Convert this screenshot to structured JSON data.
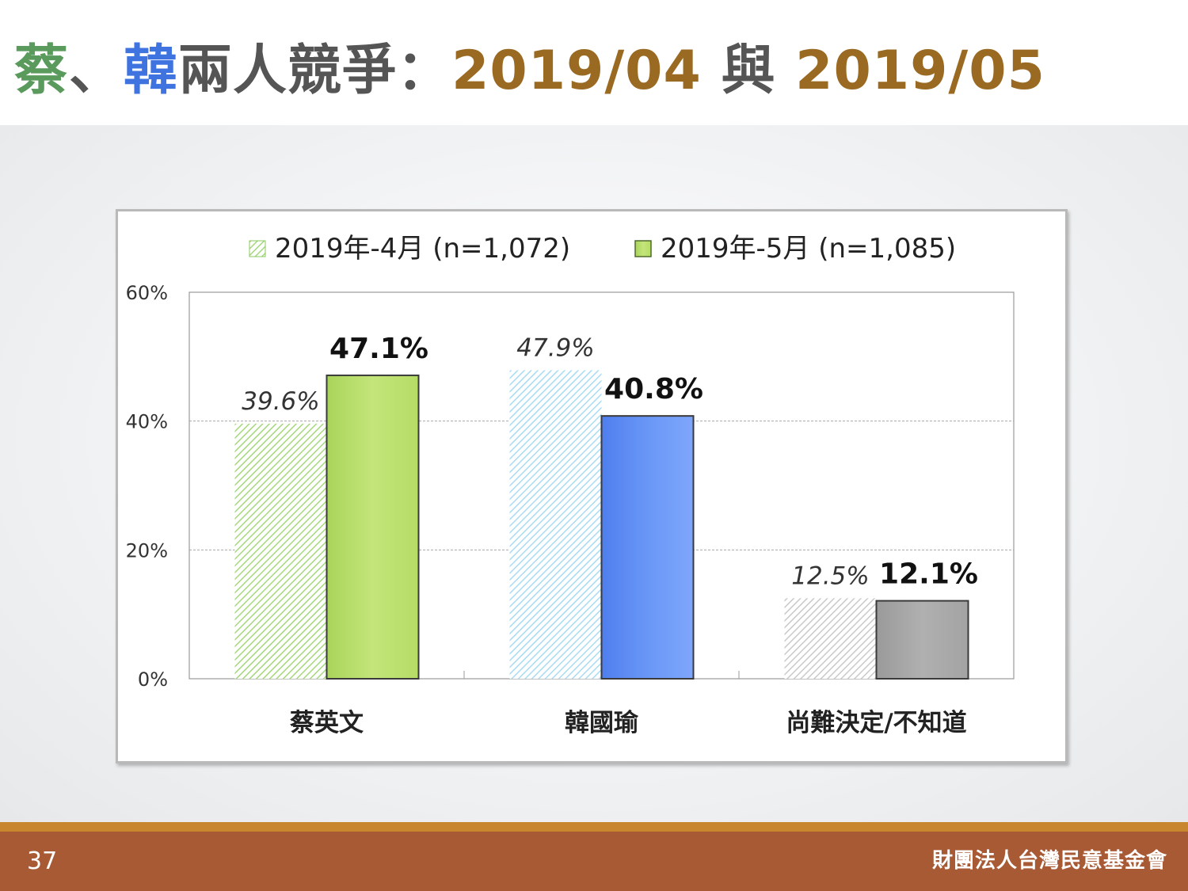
{
  "title": {
    "part1": "蔡",
    "sep": "、",
    "part2": "韓",
    "part3": "兩人競爭：",
    "date1": "2019/04",
    "conj": " 與 ",
    "date2": "2019/05"
  },
  "colors": {
    "tsai_green": "#5a9a5c",
    "han_blue": "#3f74e0",
    "title_gray": "#555555",
    "date_brown": "#9a6a22",
    "bar_green": "#b8df6d",
    "bar_blue": "#5f8ef5",
    "bar_gray": "#a6a6a6",
    "footer_bar": "#a75a34",
    "footer_line": "#c8862e"
  },
  "chart_data": {
    "type": "bar",
    "categories": [
      "蔡英文",
      "韓國瑜",
      "尚難決定/不知道"
    ],
    "series": [
      {
        "name": "2019年-4月 (n=1,072)",
        "values": [
          39.6,
          47.9,
          12.5
        ],
        "labels": [
          "39.6%",
          "47.9%",
          "12.5%"
        ],
        "style": "hatched"
      },
      {
        "name": "2019年-5月 (n=1,085)",
        "values": [
          47.1,
          40.8,
          12.1
        ],
        "labels": [
          "47.1%",
          "40.8%",
          "12.1%"
        ],
        "style": "solid"
      }
    ],
    "category_colors": {
      "hatched": [
        "#a6d87c",
        "#a9dbf4",
        "#c9c9c9"
      ],
      "solid": [
        "#b8df6d",
        "#5f8ef5",
        "#a6a6a6"
      ]
    },
    "yticks": [
      "0%",
      "20%",
      "40%",
      "60%"
    ],
    "ytick_values": [
      0,
      20,
      40,
      60
    ],
    "ylim": [
      0,
      60
    ],
    "grid": true,
    "legend_position": "top-center"
  },
  "footer": {
    "page_number": "37",
    "organization": "財團法人台灣民意基金會"
  }
}
